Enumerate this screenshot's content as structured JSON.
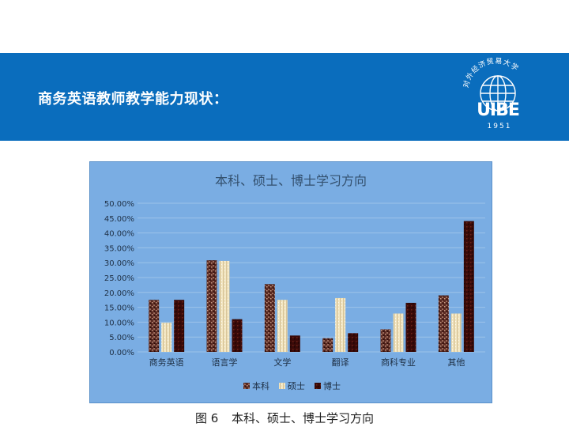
{
  "slide": {
    "title": "商务英语教师教学能力现状：",
    "band_color": "#0a6dbd",
    "logo": {
      "icon": "university-globe-logo",
      "text": "UIBE",
      "year": "1951",
      "arc_text": "对外经济贸易大学"
    }
  },
  "caption": {
    "figure_no": "图 6",
    "text": "本科、硕士、博士学习方向"
  },
  "chart_data": {
    "type": "bar",
    "title": "本科、硕士、博士学习方向",
    "categories": [
      "商务英语",
      "语言学",
      "文学",
      "翻译",
      "商科专业",
      "其他"
    ],
    "series": [
      {
        "name": "本科",
        "values": [
          17.5,
          30.8,
          22.8,
          4.6,
          7.6,
          19.0
        ],
        "color": "#5a2a22"
      },
      {
        "name": "硕士",
        "values": [
          9.8,
          30.6,
          17.5,
          18.1,
          12.9,
          12.9
        ],
        "color": "#efe2b4"
      },
      {
        "name": "博士",
        "values": [
          17.5,
          11.0,
          5.5,
          6.3,
          16.5,
          44.0
        ],
        "color": "#3a0a08"
      }
    ],
    "ylim": [
      0,
      50
    ],
    "yticks": [
      "0.00%",
      "5.00%",
      "10.00%",
      "15.00%",
      "20.00%",
      "25.00%",
      "30.00%",
      "35.00%",
      "40.00%",
      "45.00%",
      "50.00%"
    ],
    "grid": true,
    "legend": "bottom",
    "background": "#7aade3"
  }
}
